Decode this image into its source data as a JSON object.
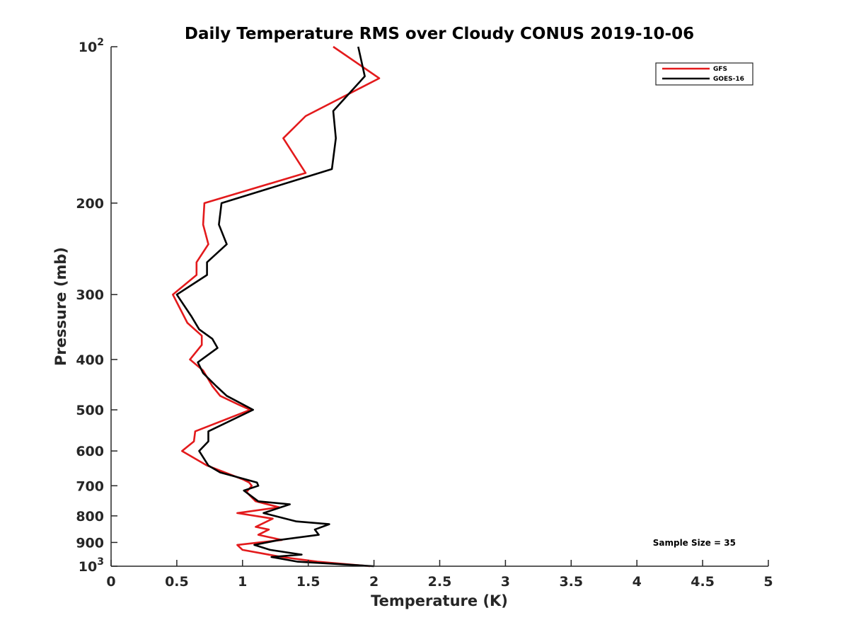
{
  "chart_data": {
    "type": "line",
    "title": "Daily Temperature RMS over Cloudy CONUS 2019-10-06",
    "xlabel": "Temperature (K)",
    "ylabel": "Pressure (mb)",
    "xlim": [
      0,
      5
    ],
    "ylim": [
      100,
      1000
    ],
    "y_scale": "log",
    "y_reversed": true,
    "grid": false,
    "legend_position": "top-right",
    "x_ticks": [
      "0",
      "0.5",
      "1",
      "1.5",
      "2",
      "2.5",
      "3",
      "3.5",
      "4",
      "4.5",
      "5"
    ],
    "y_ticks": [
      {
        "value": 100,
        "label": "10",
        "sup": "2"
      },
      {
        "value": 200,
        "label": "200"
      },
      {
        "value": 300,
        "label": "300"
      },
      {
        "value": 400,
        "label": "400"
      },
      {
        "value": 500,
        "label": "500"
      },
      {
        "value": 600,
        "label": "600"
      },
      {
        "value": 700,
        "label": "700"
      },
      {
        "value": 800,
        "label": "800"
      },
      {
        "value": 900,
        "label": "900"
      },
      {
        "value": 1000,
        "label": "10",
        "sup": "3"
      }
    ],
    "annotation": "Sample Size = 35",
    "series": [
      {
        "name": "GFS",
        "color": "#e31a1c",
        "points": [
          [
            1.69,
            100
          ],
          [
            2.04,
            115
          ],
          [
            1.48,
            136
          ],
          [
            1.31,
            150
          ],
          [
            1.48,
            175
          ],
          [
            0.71,
            200
          ],
          [
            0.7,
            220
          ],
          [
            0.74,
            240
          ],
          [
            0.65,
            260
          ],
          [
            0.65,
            275
          ],
          [
            0.47,
            300
          ],
          [
            0.58,
            340
          ],
          [
            0.69,
            360
          ],
          [
            0.69,
            375
          ],
          [
            0.6,
            400
          ],
          [
            0.7,
            420
          ],
          [
            0.77,
            450
          ],
          [
            0.83,
            470
          ],
          [
            0.98,
            490
          ],
          [
            1.06,
            500
          ],
          [
            0.64,
            550
          ],
          [
            0.63,
            575
          ],
          [
            0.54,
            600
          ],
          [
            0.73,
            640
          ],
          [
            1.0,
            680
          ],
          [
            1.05,
            690
          ],
          [
            1.07,
            700
          ],
          [
            1.03,
            720
          ],
          [
            1.1,
            750
          ],
          [
            1.28,
            770
          ],
          [
            0.96,
            790
          ],
          [
            1.23,
            810
          ],
          [
            1.1,
            840
          ],
          [
            1.2,
            850
          ],
          [
            1.12,
            870
          ],
          [
            1.3,
            890
          ],
          [
            0.96,
            910
          ],
          [
            1.0,
            930
          ],
          [
            1.3,
            960
          ],
          [
            1.57,
            980
          ],
          [
            1.97,
            1000
          ]
        ]
      },
      {
        "name": "GOES-16",
        "color": "#000000",
        "points": [
          [
            1.88,
            100
          ],
          [
            1.93,
            114
          ],
          [
            1.69,
            133
          ],
          [
            1.71,
            150
          ],
          [
            1.68,
            172
          ],
          [
            0.84,
            200
          ],
          [
            0.82,
            220
          ],
          [
            0.88,
            240
          ],
          [
            0.73,
            260
          ],
          [
            0.73,
            275
          ],
          [
            0.5,
            300
          ],
          [
            0.61,
            330
          ],
          [
            0.67,
            350
          ],
          [
            0.77,
            365
          ],
          [
            0.81,
            380
          ],
          [
            0.66,
            405
          ],
          [
            0.7,
            425
          ],
          [
            0.8,
            450
          ],
          [
            0.88,
            470
          ],
          [
            1.08,
            500
          ],
          [
            0.74,
            550
          ],
          [
            0.74,
            575
          ],
          [
            0.67,
            600
          ],
          [
            0.74,
            640
          ],
          [
            0.83,
            660
          ],
          [
            1.02,
            680
          ],
          [
            1.11,
            690
          ],
          [
            1.12,
            700
          ],
          [
            1.01,
            715
          ],
          [
            1.12,
            750
          ],
          [
            1.36,
            760
          ],
          [
            1.16,
            790
          ],
          [
            1.41,
            820
          ],
          [
            1.66,
            830
          ],
          [
            1.55,
            850
          ],
          [
            1.58,
            870
          ],
          [
            1.28,
            890
          ],
          [
            1.09,
            910
          ],
          [
            1.21,
            930
          ],
          [
            1.45,
            950
          ],
          [
            1.22,
            960
          ],
          [
            1.42,
            980
          ],
          [
            2.0,
            1000
          ]
        ]
      }
    ]
  }
}
